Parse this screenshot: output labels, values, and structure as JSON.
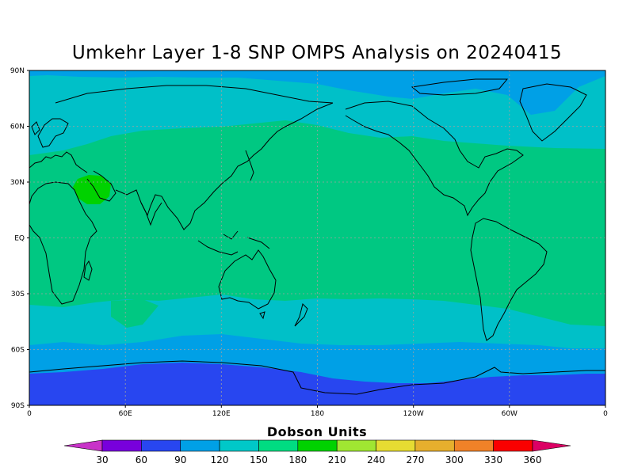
{
  "title": "Umkehr Layer 1-8 SNP OMPS Analysis on 20240415",
  "colorbar": {
    "title": "Dobson Units",
    "labels": [
      "30",
      "60",
      "90",
      "120",
      "150",
      "180",
      "210",
      "240",
      "270",
      "300",
      "330",
      "360"
    ],
    "colors": [
      "#c832c8",
      "#7800dc",
      "#2846f0",
      "#00a0e6",
      "#00c8c8",
      "#00dc82",
      "#00d200",
      "#a0e632",
      "#e6dc32",
      "#e6af2d",
      "#f08228",
      "#fa0000",
      "#dc0064"
    ]
  },
  "axes": {
    "y_ticks": [
      "90N",
      "60N",
      "30N",
      "EQ",
      "30S",
      "60S",
      "90S"
    ],
    "x_ticks": [
      "0",
      "60E",
      "120E",
      "180",
      "120W",
      "60W",
      "0"
    ]
  },
  "map": {
    "projection": "cylindrical equidistant",
    "lon_range": [
      0,
      360
    ],
    "lat_range": [
      -90,
      90
    ],
    "grid": true,
    "bands_DU": {
      "arctic": 120,
      "northern_midlatitudes": 150,
      "tropics_subtropics": 180,
      "middle_east_max": 210,
      "southern_midlatitudes": 150,
      "southern_high_latitudes": 120,
      "antarctic": 90
    }
  }
}
